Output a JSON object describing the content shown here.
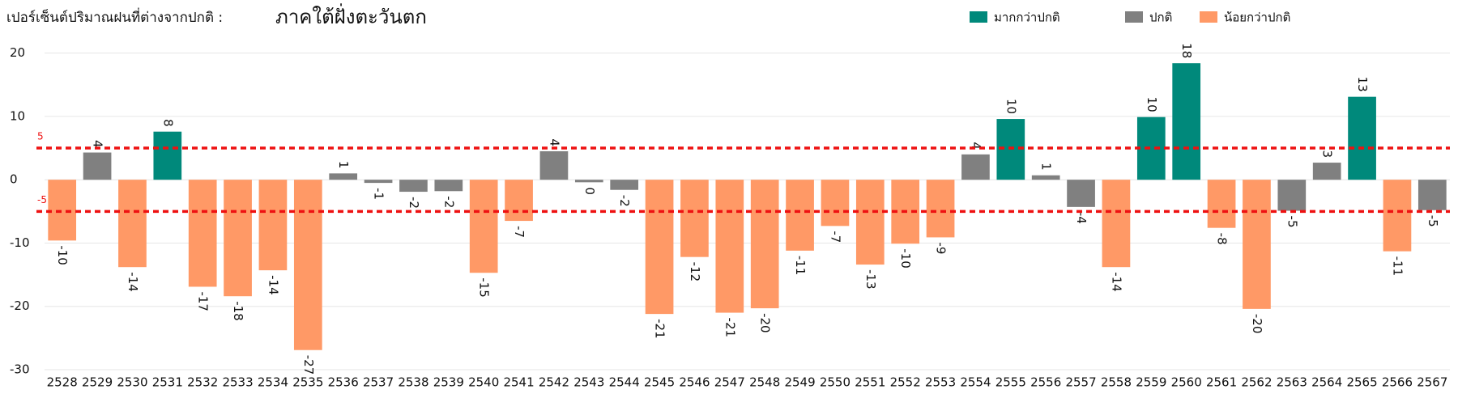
{
  "chart_data": {
    "type": "bar",
    "title": "เปอร์เซ็นต์ปริมาณฝนที่ต่างจากปกติ :",
    "subtitle": "ภาคใต้ฝั่งตะวันตก",
    "categories": [
      "2528",
      "2529",
      "2530",
      "2531",
      "2532",
      "2533",
      "2534",
      "2535",
      "2536",
      "2537",
      "2538",
      "2539",
      "2540",
      "2541",
      "2542",
      "2543",
      "2544",
      "2545",
      "2546",
      "2547",
      "2548",
      "2549",
      "2550",
      "2551",
      "2552",
      "2553",
      "2554",
      "2555",
      "2556",
      "2557",
      "2558",
      "2559",
      "2560",
      "2561",
      "2562",
      "2563",
      "2564",
      "2565",
      "2566",
      "2567"
    ],
    "series": [
      {
        "name": "มากกว่าปกติ",
        "color": "#00897b",
        "values": [
          null,
          null,
          null,
          7.6,
          null,
          null,
          null,
          null,
          null,
          null,
          null,
          null,
          null,
          null,
          null,
          null,
          null,
          null,
          null,
          null,
          null,
          null,
          null,
          null,
          null,
          null,
          null,
          9.6,
          null,
          null,
          null,
          9.9,
          18.4,
          null,
          null,
          null,
          null,
          13.1,
          null,
          null
        ],
        "value_labels": [
          null,
          null,
          null,
          "8",
          null,
          null,
          null,
          null,
          null,
          null,
          null,
          null,
          null,
          null,
          null,
          null,
          null,
          null,
          null,
          null,
          null,
          null,
          null,
          null,
          null,
          null,
          null,
          "10",
          null,
          null,
          null,
          "10",
          "18",
          null,
          null,
          null,
          null,
          "13",
          null,
          null
        ]
      },
      {
        "name": "ปกติ",
        "color": "#808080",
        "values": [
          null,
          4.3,
          null,
          null,
          null,
          null,
          null,
          null,
          1.0,
          -0.5,
          -1.9,
          -1.8,
          null,
          null,
          4.5,
          -0.4,
          -1.6,
          null,
          null,
          null,
          null,
          null,
          null,
          null,
          null,
          null,
          4.0,
          null,
          0.7,
          -4.3,
          null,
          null,
          null,
          null,
          null,
          -4.9,
          2.7,
          null,
          null,
          -4.8
        ],
        "value_labels": [
          null,
          "4",
          null,
          null,
          null,
          null,
          null,
          null,
          "1",
          "-1",
          "-2",
          "-2",
          null,
          null,
          "4",
          "0",
          "-2",
          null,
          null,
          null,
          null,
          null,
          null,
          null,
          null,
          null,
          "4",
          null,
          "1",
          "-4",
          null,
          null,
          null,
          null,
          null,
          "-5",
          "3",
          null,
          null,
          "-5"
        ]
      },
      {
        "name": "น้อยกว่าปกติ",
        "color": "#ff9966",
        "values": [
          -9.6,
          null,
          -13.8,
          null,
          -16.9,
          -18.4,
          -14.3,
          -26.9,
          null,
          null,
          null,
          null,
          -14.7,
          -6.5,
          null,
          null,
          null,
          -21.2,
          -12.2,
          -21.0,
          -20.3,
          -11.2,
          -7.3,
          -13.4,
          -10.1,
          -9.1,
          null,
          null,
          null,
          null,
          -13.8,
          null,
          null,
          -7.6,
          -20.4,
          null,
          null,
          null,
          -11.3,
          null
        ],
        "value_labels": [
          "-10",
          null,
          "-14",
          null,
          "-17",
          "-18",
          "-14",
          "-27",
          null,
          null,
          null,
          null,
          "-15",
          "-7",
          null,
          null,
          null,
          "-21",
          "-12",
          "-21",
          "-20",
          "-11",
          "-7",
          "-13",
          "-10",
          "-9",
          null,
          null,
          null,
          null,
          "-14",
          null,
          null,
          "-8",
          "-20",
          null,
          null,
          null,
          "-11",
          null
        ]
      }
    ],
    "reference_lines": [
      5,
      -5
    ],
    "reference_color": "#ee1111",
    "ylim": [
      -30,
      22
    ],
    "yticks": [
      -30,
      -20,
      -10,
      0,
      10,
      20
    ],
    "grid": true
  }
}
